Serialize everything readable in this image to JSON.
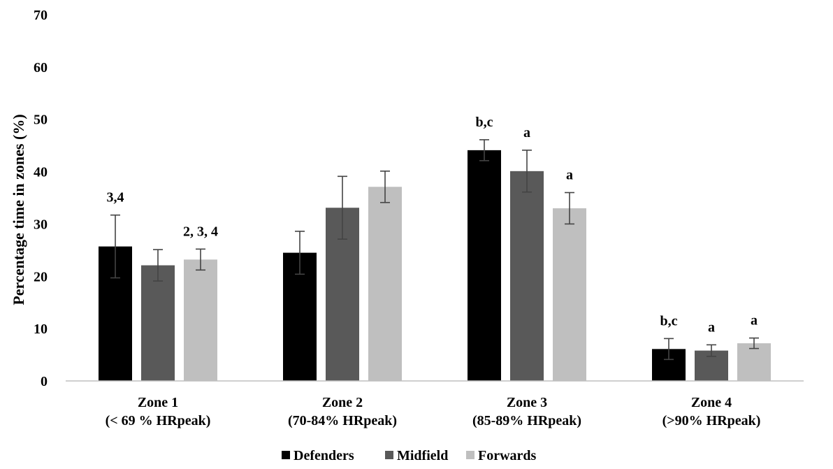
{
  "chart_data": {
    "type": "bar",
    "title": "",
    "xlabel": "",
    "ylabel": "Percentage time in zones (%)",
    "ylim": [
      0,
      70
    ],
    "yticks": [
      0,
      10,
      20,
      30,
      40,
      50,
      60,
      70
    ],
    "grid": false,
    "legend_position": "bottom-center",
    "categories": [
      {
        "line1": "Zone 1",
        "line2": "(< 69 % HRpeak)"
      },
      {
        "line1": "Zone 2",
        "line2": "(70-84% HRpeak)"
      },
      {
        "line1": "Zone 3",
        "line2": "(85-89% HRpeak)"
      },
      {
        "line1": "Zone 4",
        "line2": "(>90% HRpeak)"
      }
    ],
    "series": [
      {
        "name": "Defenders",
        "color": "#000000",
        "values": [
          25.7,
          24.5,
          44.1,
          6.1
        ],
        "errors": [
          6.0,
          4.1,
          2.0,
          2.0
        ],
        "annotations": [
          "3,4",
          "",
          "b,c",
          "b,c"
        ]
      },
      {
        "name": "Midfield",
        "color": "#595959",
        "values": [
          22.1,
          33.1,
          40.1,
          5.8
        ],
        "errors": [
          3.0,
          6.0,
          4.0,
          1.1
        ],
        "annotations": [
          "",
          "",
          "a",
          "a"
        ]
      },
      {
        "name": "Forwards",
        "color": "#bfbfbf",
        "values": [
          23.2,
          37.1,
          33.0,
          7.2
        ],
        "errors": [
          2.0,
          3.0,
          3.0,
          1.0
        ],
        "annotations": [
          "2, 3, 4",
          "",
          "a",
          "a"
        ]
      }
    ]
  }
}
